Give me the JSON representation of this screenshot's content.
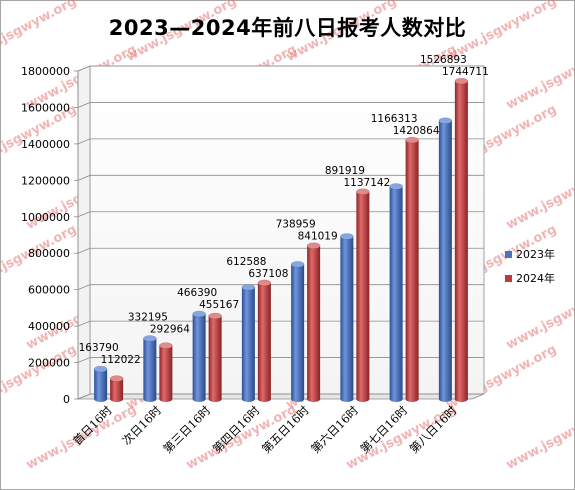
{
  "watermark": "www.jsgwyw.org",
  "chart_data": {
    "type": "bar",
    "title": "2023—2024年前八日报考人数对比",
    "categories": [
      "首日16时",
      "次日16时",
      "第三日16时",
      "第四日16时",
      "第五日16时",
      "第六日16时",
      "第七日16时",
      "第八日16时"
    ],
    "series": [
      {
        "name": "2023年",
        "color": "#4a72c4",
        "values": [
          163790,
          332195,
          466390,
          612588,
          738959,
          891919,
          1166313,
          1526893
        ]
      },
      {
        "name": "2024年",
        "color": "#c0393b",
        "values": [
          112022,
          292964,
          455167,
          637108,
          841019,
          1137142,
          1420864,
          1744711
        ]
      }
    ],
    "ylim": [
      0,
      1800000
    ],
    "yticks": [
      0,
      200000,
      400000,
      600000,
      800000,
      1000000,
      1200000,
      1400000,
      1600000,
      1800000
    ],
    "grid": true,
    "legend": "right",
    "style": "3d-cylinder"
  }
}
